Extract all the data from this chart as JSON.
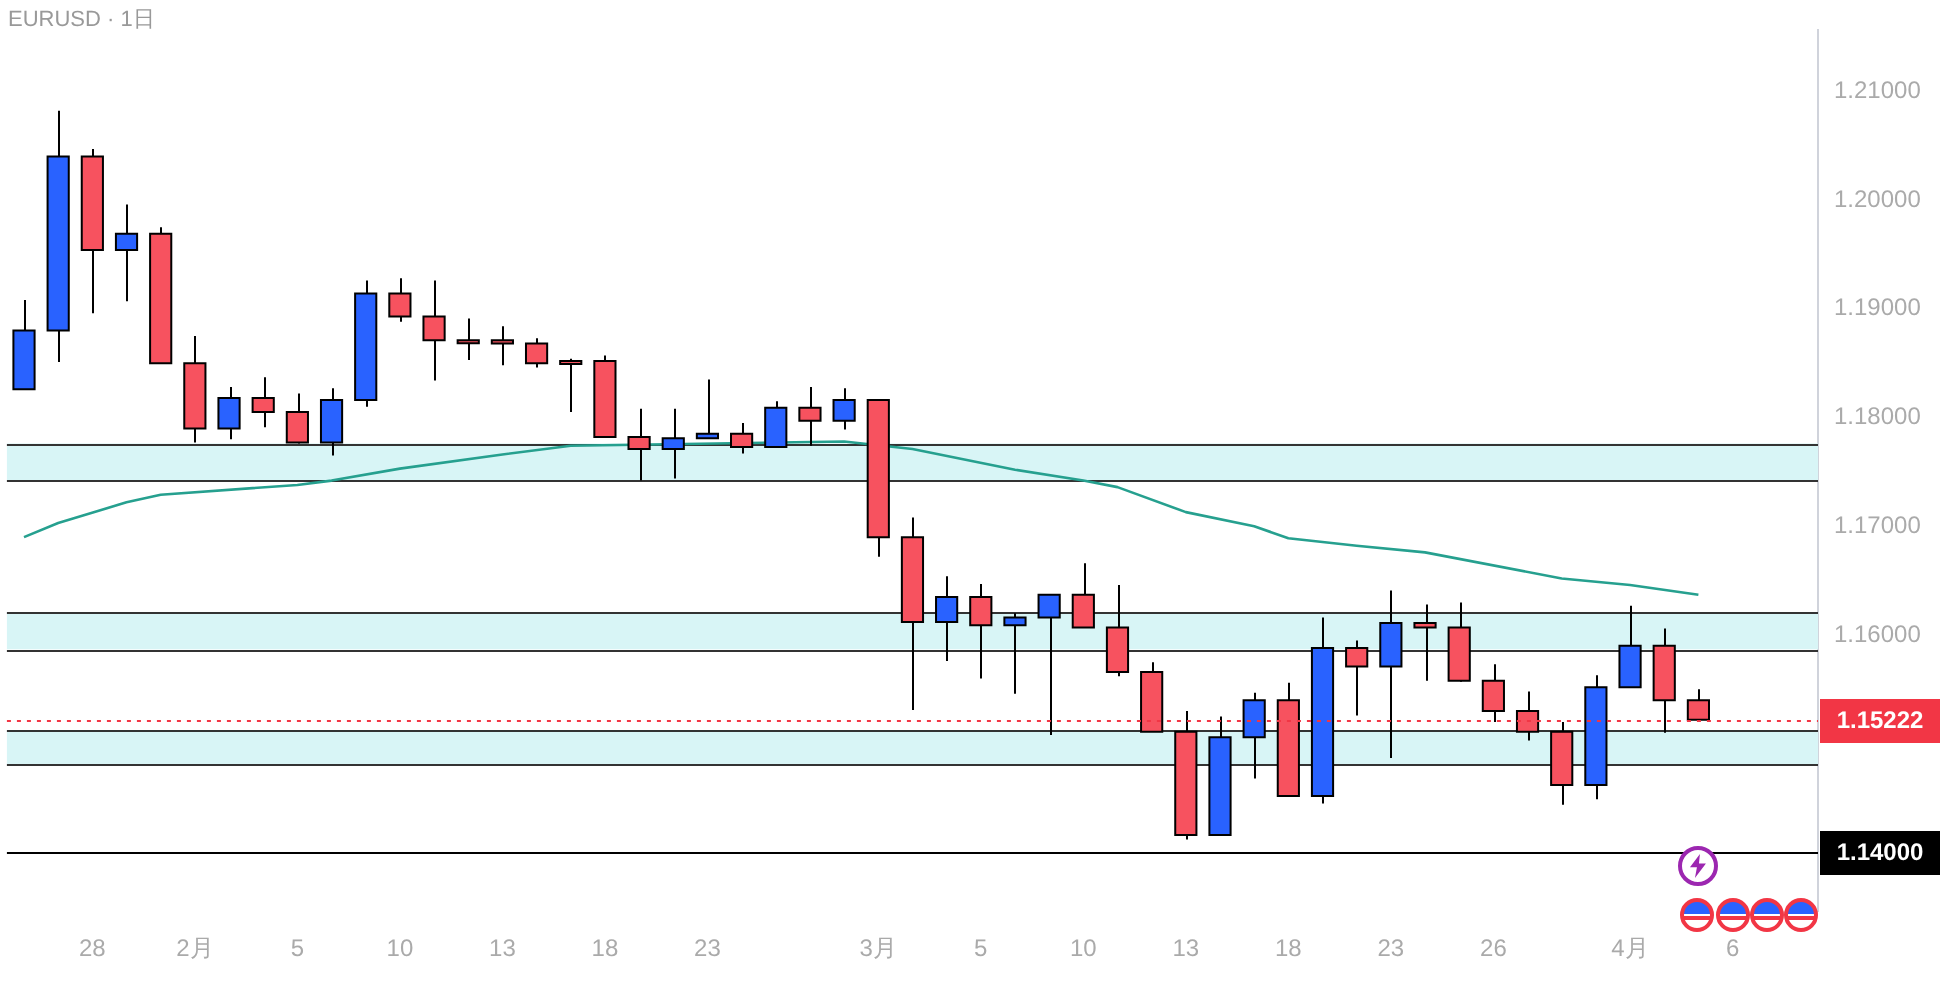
{
  "chart_data": {
    "type": "candlestick",
    "title": "EURUSD · 1日",
    "categories": [
      null,
      null,
      "28",
      null,
      null,
      "2月",
      null,
      null,
      "5",
      null,
      null,
      "10",
      null,
      null,
      "13",
      null,
      null,
      "18",
      null,
      null,
      "23",
      null,
      null,
      null,
      null,
      "3月",
      null,
      null,
      "5",
      null,
      null,
      "10",
      null,
      null,
      "13",
      null,
      null,
      "18",
      null,
      null,
      "23",
      null,
      null,
      "26",
      null,
      null,
      null,
      "4月",
      null,
      null,
      "6",
      null,
      null
    ],
    "ohlc": [
      [
        1.1826,
        1.1908,
        1.1826,
        1.188
      ],
      [
        1.188,
        1.2082,
        1.1851,
        1.204
      ],
      [
        1.204,
        1.2047,
        1.1896,
        1.1954
      ],
      [
        1.1954,
        1.1996,
        1.1907,
        1.1969
      ],
      [
        1.1969,
        1.1975,
        1.185,
        1.185
      ],
      [
        1.185,
        1.1875,
        1.1777,
        1.179
      ],
      [
        1.179,
        1.1828,
        1.178,
        1.1818
      ],
      [
        1.1818,
        1.1837,
        1.1791,
        1.1805
      ],
      [
        1.1805,
        1.1822,
        1.1776,
        1.1777
      ],
      [
        1.1777,
        1.1827,
        1.1765,
        1.1816
      ],
      [
        1.1816,
        1.1926,
        1.181,
        1.1914
      ],
      [
        1.1914,
        1.1928,
        1.1888,
        1.1893
      ],
      [
        1.1893,
        1.1926,
        1.1834,
        1.1871
      ],
      [
        1.1871,
        1.1891,
        1.1853,
        1.187
      ],
      [
        1.1871,
        1.1884,
        1.1848,
        1.1868
      ],
      [
        1.1868,
        1.1873,
        1.1846,
        1.185
      ],
      [
        1.1852,
        1.1854,
        1.1805,
        1.185
      ],
      [
        1.1852,
        1.1857,
        1.1782,
        1.1782
      ],
      [
        1.1782,
        1.1808,
        1.1742,
        1.1771
      ],
      [
        1.1771,
        1.1808,
        1.1744,
        1.1781
      ],
      [
        1.1781,
        1.1835,
        1.1781,
        1.1785
      ],
      [
        1.1785,
        1.1795,
        1.1767,
        1.1773
      ],
      [
        1.1773,
        1.1815,
        1.1773,
        1.1809
      ],
      [
        1.1809,
        1.1828,
        1.1774,
        1.1797
      ],
      [
        1.1797,
        1.1827,
        1.1789,
        1.1816
      ],
      [
        1.1816,
        1.1816,
        1.1672,
        1.169
      ],
      [
        1.169,
        1.1708,
        1.1531,
        1.1612
      ],
      [
        1.1612,
        1.1654,
        1.1576,
        1.1635
      ],
      [
        1.1635,
        1.1647,
        1.156,
        1.1609
      ],
      [
        1.1609,
        1.162,
        1.1546,
        1.1616
      ],
      [
        1.1616,
        1.1637,
        1.1508,
        1.1637
      ],
      [
        1.1637,
        1.1666,
        1.1607,
        1.1607
      ],
      [
        1.1607,
        1.1646,
        1.1562,
        1.1566
      ],
      [
        1.1566,
        1.1575,
        1.1511,
        1.1511
      ],
      [
        1.1511,
        1.153,
        1.1412,
        1.1416
      ],
      [
        1.1416,
        1.1525,
        1.1416,
        1.1506
      ],
      [
        1.1506,
        1.1547,
        1.1468,
        1.154
      ],
      [
        1.154,
        1.1556,
        1.1452,
        1.1452
      ],
      [
        1.1452,
        1.1616,
        1.1445,
        1.1588
      ],
      [
        1.1588,
        1.1595,
        1.1526,
        1.1571
      ],
      [
        1.1571,
        1.1641,
        1.1487,
        1.1611
      ],
      [
        1.1611,
        1.1628,
        1.1558,
        1.1607
      ],
      [
        1.1607,
        1.163,
        1.1557,
        1.1558
      ],
      [
        1.1558,
        1.1573,
        1.152,
        1.153
      ],
      [
        1.153,
        1.1548,
        1.1503,
        1.1511
      ],
      [
        1.1511,
        1.152,
        1.1444,
        1.1462
      ],
      [
        1.1462,
        1.1563,
        1.1449,
        1.1552
      ],
      [
        1.1552,
        1.1627,
        1.1552,
        1.159
      ],
      [
        1.159,
        1.1606,
        1.151,
        1.154
      ],
      [
        1.154,
        1.155,
        1.1521,
        1.1522
      ],
      null,
      null,
      null
    ],
    "colors": [
      "#2962ff",
      "#2962ff",
      "#f7525f",
      "#2962ff",
      "#f7525f",
      "#f7525f",
      "#2962ff",
      "#f7525f",
      "#f7525f",
      "#2962ff",
      "#2962ff",
      "#f7525f",
      "#f7525f",
      "#f7525f",
      "#f7525f",
      "#f7525f",
      "#f7525f",
      "#f7525f",
      "#f7525f",
      "#2962ff",
      "#2962ff",
      "#f7525f",
      "#2962ff",
      "#f7525f",
      "#2962ff",
      "#f7525f",
      "#f7525f",
      "#2962ff",
      "#f7525f",
      "#2962ff",
      "#2962ff",
      "#f7525f",
      "#f7525f",
      "#f7525f",
      "#f7525f",
      "#2962ff",
      "#2962ff",
      "#f7525f",
      "#2962ff",
      "#f7525f",
      "#2962ff",
      "#f7525f",
      "#f7525f",
      "#f7525f",
      "#f7525f",
      "#f7525f",
      "#2962ff",
      "#2962ff",
      "#f7525f",
      "#f7525f",
      null,
      null,
      null
    ],
    "series": [
      {
        "type": "line",
        "color": "#26a08f",
        "marker": "none",
        "values": [
          1.169,
          1.1703,
          null,
          1.1722,
          1.1729,
          null,
          null,
          null,
          1.1738,
          1.1742,
          null,
          1.1753,
          null,
          null,
          1.1766,
          null,
          1.1774,
          null,
          null,
          null,
          null,
          null,
          null,
          null,
          1.1778,
          null,
          1.1771,
          null,
          null,
          1.1752,
          null,
          1.1742,
          1.1736,
          null,
          1.1713,
          null,
          1.17,
          1.1689,
          null,
          1.1682,
          null,
          1.1676,
          null,
          null,
          null,
          1.1652,
          null,
          1.1646,
          null,
          1.1637,
          null,
          null,
          null
        ]
      }
    ],
    "ylim": [
      1.1346,
      1.2156
    ],
    "yticks": [
      {
        "value": 1.16,
        "label": "1.16000"
      },
      {
        "value": 1.17,
        "label": "1.17000"
      },
      {
        "value": 1.18,
        "label": "1.18000"
      },
      {
        "value": 1.19,
        "label": "1.19000"
      },
      {
        "value": 1.2,
        "label": "1.20000"
      },
      {
        "value": 1.21,
        "label": "1.21000"
      }
    ],
    "bands": [
      {
        "axis": "y",
        "from": 1.1742,
        "to": 1.1776,
        "color": "#d8f5f6"
      },
      {
        "axis": "y",
        "from": 1.1587,
        "to": 1.1621,
        "color": "#d8f5f6"
      },
      {
        "axis": "y",
        "from": 1.1481,
        "to": 1.1512,
        "color": "#d8f5f6"
      }
    ],
    "ref_lines": [
      {
        "axis": "y",
        "value": 1.15222,
        "label": "1.15222",
        "color": "#f23645",
        "line_style": "dotted"
      },
      {
        "axis": "y",
        "value": 1.14,
        "label": "1.14000",
        "color": "#000000",
        "line_style": "solid"
      }
    ]
  }
}
